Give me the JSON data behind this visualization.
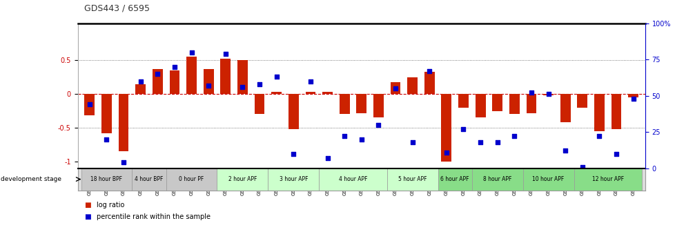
{
  "title": "GDS443 / 6595",
  "samples": [
    "GSM4585",
    "GSM4586",
    "GSM4587",
    "GSM4588",
    "GSM4589",
    "GSM4590",
    "GSM4591",
    "GSM4592",
    "GSM4593",
    "GSM4594",
    "GSM4595",
    "GSM4596",
    "GSM4597",
    "GSM4598",
    "GSM4599",
    "GSM4600",
    "GSM4601",
    "GSM4602",
    "GSM4603",
    "GSM4604",
    "GSM4605",
    "GSM4606",
    "GSM4607",
    "GSM4608",
    "GSM4609",
    "GSM4610",
    "GSM4611",
    "GSM4612",
    "GSM4613",
    "GSM4614",
    "GSM4615",
    "GSM4616",
    "GSM4617"
  ],
  "log_ratio": [
    -0.32,
    -0.58,
    -0.85,
    0.14,
    0.37,
    0.35,
    0.55,
    0.37,
    0.52,
    0.5,
    -0.3,
    0.03,
    -0.52,
    0.03,
    0.03,
    -0.3,
    -0.28,
    -0.35,
    0.18,
    0.25,
    0.33,
    -1.0,
    -0.2,
    -0.35,
    -0.25,
    -0.3,
    -0.28,
    -0.02,
    -0.42,
    -0.2,
    -0.55,
    -0.52,
    -0.05
  ],
  "percentile": [
    0.44,
    0.2,
    0.04,
    0.6,
    0.65,
    0.7,
    0.8,
    0.57,
    0.79,
    0.56,
    0.58,
    0.63,
    0.1,
    0.6,
    0.07,
    0.22,
    0.2,
    0.3,
    0.55,
    0.18,
    0.67,
    0.11,
    0.27,
    0.18,
    0.18,
    0.22,
    0.52,
    0.51,
    0.12,
    0.01,
    0.22,
    0.1,
    0.48
  ],
  "stages": [
    {
      "label": "18 hour BPF",
      "start": 0,
      "end": 2,
      "color": "#c8c8c8"
    },
    {
      "label": "4 hour BPF",
      "start": 3,
      "end": 4,
      "color": "#c8c8c8"
    },
    {
      "label": "0 hour PF",
      "start": 5,
      "end": 7,
      "color": "#c8c8c8"
    },
    {
      "label": "2 hour APF",
      "start": 8,
      "end": 10,
      "color": "#ccffcc"
    },
    {
      "label": "3 hour APF",
      "start": 11,
      "end": 13,
      "color": "#ccffcc"
    },
    {
      "label": "4 hour APF",
      "start": 14,
      "end": 17,
      "color": "#ccffcc"
    },
    {
      "label": "5 hour APF",
      "start": 18,
      "end": 20,
      "color": "#ccffcc"
    },
    {
      "label": "6 hour APF",
      "start": 21,
      "end": 22,
      "color": "#88dd88"
    },
    {
      "label": "8 hour APF",
      "start": 23,
      "end": 25,
      "color": "#88dd88"
    },
    {
      "label": "10 hour APF",
      "start": 26,
      "end": 28,
      "color": "#88dd88"
    },
    {
      "label": "12 hour APF",
      "start": 29,
      "end": 32,
      "color": "#88dd88"
    }
  ],
  "bar_color": "#cc2200",
  "dot_color": "#0000cc",
  "ylim": [
    -1.1,
    1.05
  ],
  "yticks": [
    -1,
    -0.5,
    0,
    0.5
  ],
  "ytick_labels": [
    "-1",
    "-0.5",
    "0",
    "0.5"
  ],
  "y2ticks": [
    0,
    25,
    50,
    75,
    100
  ],
  "y2tick_labels": [
    "0",
    "25",
    "50",
    "75",
    "100%"
  ],
  "hline_color": "#cc0000",
  "dotted_color": "#555555",
  "top_border_color": "#000000",
  "legend_bar_label": "log ratio",
  "legend_dot_label": "percentile rank within the sample",
  "dev_stage_label": "development stage"
}
